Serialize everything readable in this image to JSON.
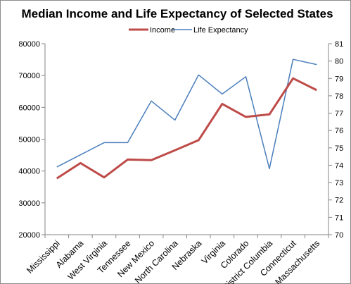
{
  "chart_data": {
    "type": "line",
    "title": "Median Income and Life Expectancy of Selected States",
    "legend_position": "top-center",
    "grid": false,
    "categories": [
      "Mississippi",
      "Alabama",
      "West Virginia",
      "Tennessee",
      "New Mexico",
      "North Carolina",
      "Nebraska",
      "Virginia",
      "Colorado",
      "District Columbia",
      "Connecticut",
      "Massachusetts"
    ],
    "series": [
      {
        "name": "Income",
        "axis": "left",
        "color": "#be4b48",
        "values": [
          37700,
          42500,
          38000,
          43600,
          43400,
          46500,
          49700,
          61100,
          57000,
          57800,
          69100,
          65400
        ]
      },
      {
        "name": "Life Expectancy",
        "axis": "right",
        "color": "#4a7ebb",
        "values": [
          73.9,
          74.6,
          75.3,
          75.3,
          77.7,
          76.6,
          79.2,
          78.1,
          79.1,
          73.8,
          80.1,
          79.8
        ]
      }
    ],
    "y_left": {
      "min": 20000,
      "max": 80000,
      "ticks": [
        "20000",
        "30000",
        "40000",
        "50000",
        "60000",
        "70000",
        "80000"
      ]
    },
    "y_right": {
      "min": 70,
      "max": 81,
      "ticks": [
        "70",
        "71",
        "72",
        "73",
        "74",
        "75",
        "76",
        "77",
        "78",
        "79",
        "80",
        "81"
      ]
    }
  }
}
